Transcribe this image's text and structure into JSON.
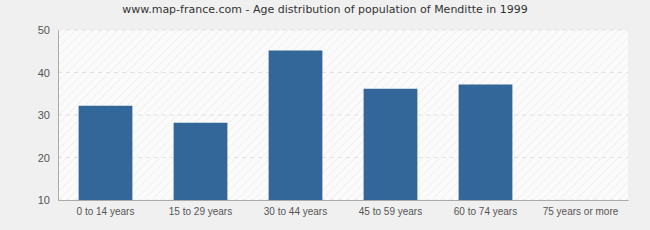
{
  "chart_data": {
    "type": "bar",
    "title": "www.map-france.com - Age distribution of population of Menditte in 1999",
    "categories": [
      "0 to 14 years",
      "15 to 29 years",
      "30 to 44 years",
      "45 to 59 years",
      "60 to 74 years",
      "75 years or more"
    ],
    "values": [
      32,
      28,
      45,
      36,
      37,
      10
    ],
    "color": "#336699",
    "ylim": [
      10,
      50
    ],
    "yticks": [
      10,
      20,
      30,
      40,
      50
    ],
    "grid": true
  }
}
